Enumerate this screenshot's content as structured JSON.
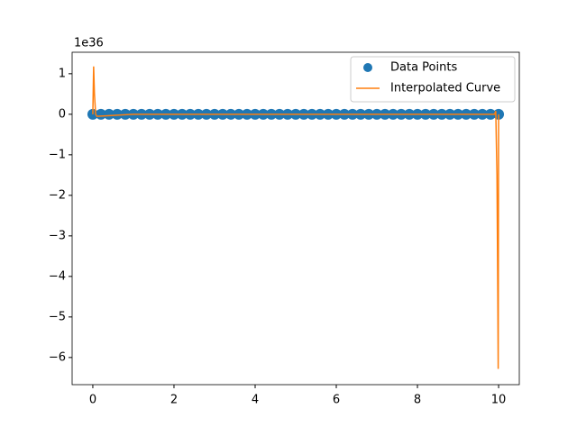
{
  "chart_data": {
    "type": "line",
    "y_offset_label": "1e36",
    "xlim": [
      -0.51,
      10.51
    ],
    "ylim": [
      -6.67,
      1.53
    ],
    "xticks": [
      0,
      2,
      4,
      6,
      8,
      10
    ],
    "yticks": [
      {
        "value": 1,
        "label": "1"
      },
      {
        "value": 0,
        "label": "0"
      },
      {
        "value": -1,
        "label": "−1"
      },
      {
        "value": -2,
        "label": "−2"
      },
      {
        "value": -3,
        "label": "−3"
      },
      {
        "value": -4,
        "label": "−4"
      },
      {
        "value": -5,
        "label": "−5"
      },
      {
        "value": -6,
        "label": "−6"
      }
    ],
    "legend": "upper right",
    "series": [
      {
        "name": "Data Points",
        "style": "markers",
        "color": "#1f77b4",
        "x": [
          0,
          0.2,
          0.4,
          0.6,
          0.8,
          1,
          1.2,
          1.4,
          1.6,
          1.8,
          2,
          2.2,
          2.4,
          2.6,
          2.8,
          3,
          3.2,
          3.4,
          3.6,
          3.8,
          4,
          4.2,
          4.4,
          4.6,
          4.8,
          5,
          5.2,
          5.4,
          5.6,
          5.8,
          6,
          6.2,
          6.4,
          6.6,
          6.8,
          7,
          7.2,
          7.4,
          7.6,
          7.8,
          8,
          8.2,
          8.4,
          8.6,
          8.8,
          9,
          9.2,
          9.4,
          9.6,
          9.8,
          10
        ],
        "values": [
          0,
          0,
          0,
          0,
          0,
          0,
          0,
          0,
          0,
          0,
          0,
          0,
          0,
          0,
          0,
          0,
          0,
          0,
          0,
          0,
          0,
          0,
          0,
          0,
          0,
          0,
          0,
          0,
          0,
          0,
          0,
          0,
          0,
          0,
          0,
          0,
          0,
          0,
          0,
          0,
          0,
          0,
          0,
          0,
          0,
          0,
          0,
          0,
          0,
          0,
          0
        ]
      },
      {
        "name": "Interpolated Curve",
        "style": "line",
        "color": "#ff7f0e",
        "x": [
          0,
          0.01,
          0.02,
          0.04,
          0.07,
          0.1,
          1,
          5,
          9,
          9.9,
          9.93,
          9.96,
          9.98,
          9.99,
          10
        ],
        "values": [
          0,
          0.6,
          1.18,
          0.5,
          0,
          -0.05,
          0,
          0,
          0,
          0,
          0.08,
          -1.5,
          -4.5,
          -6.28,
          0
        ]
      }
    ]
  }
}
